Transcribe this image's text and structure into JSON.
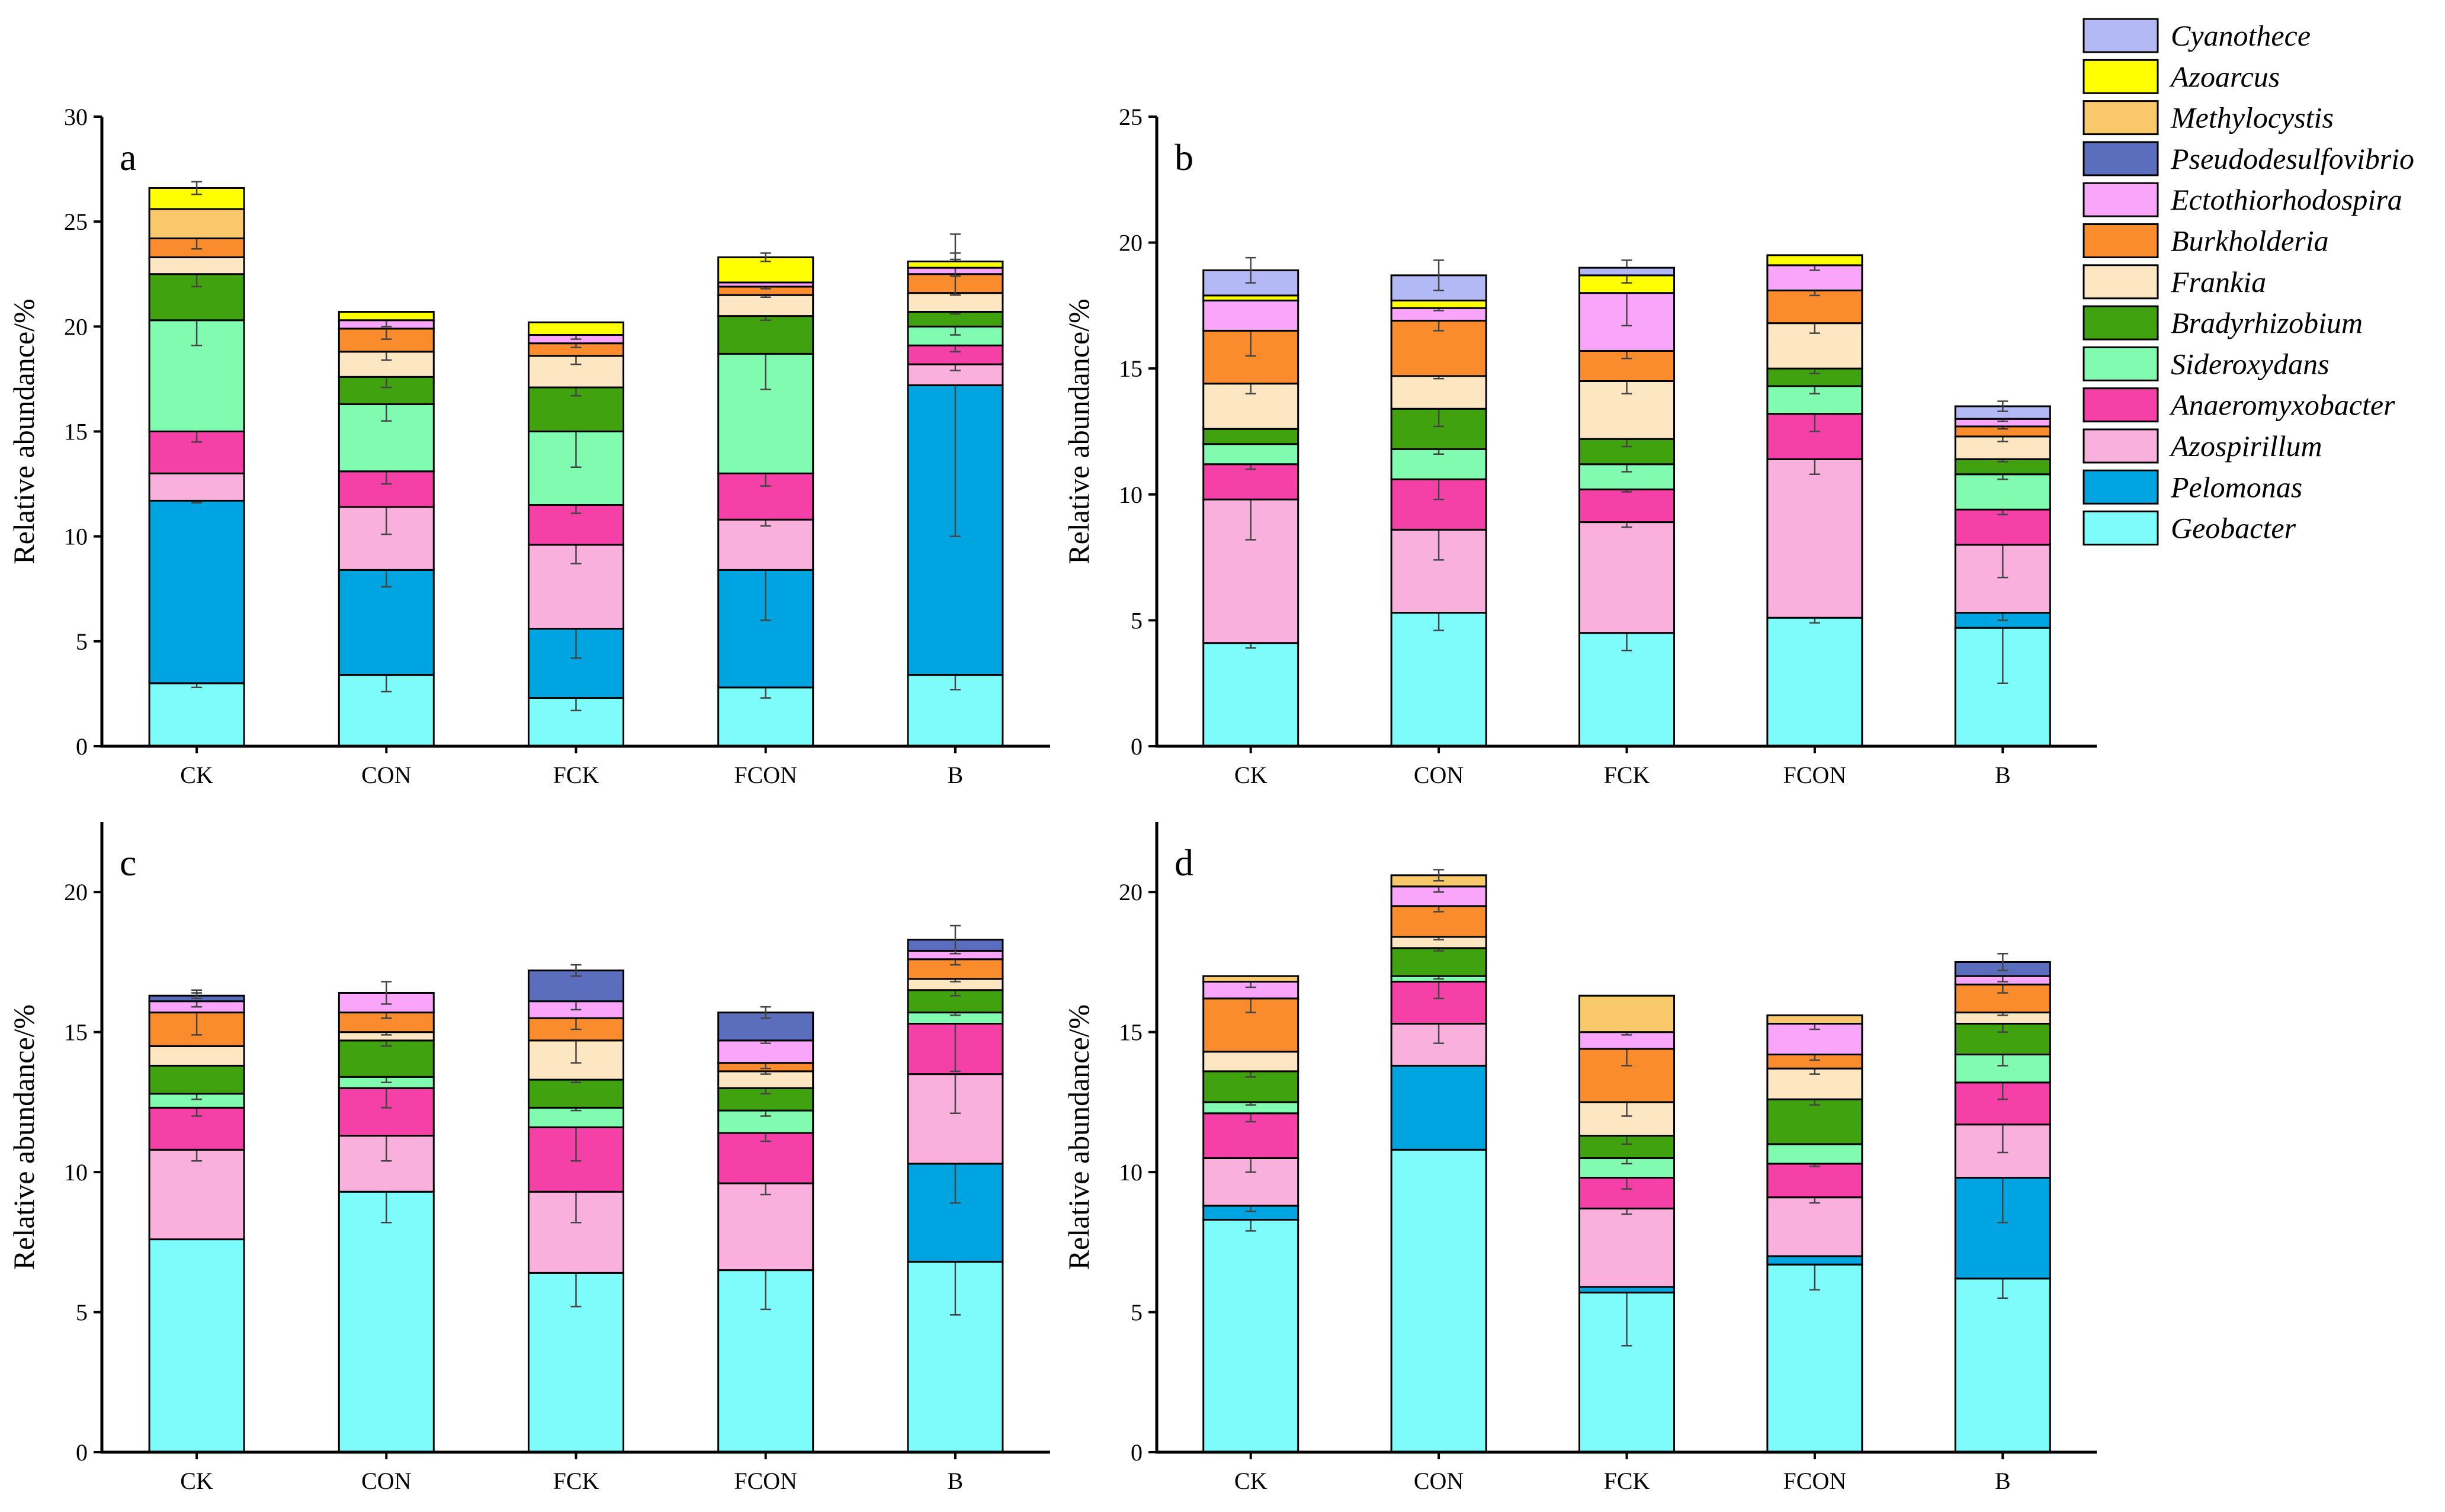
{
  "chart_data": {
    "type": "stacked-bar",
    "ylabel": "Relative abundance/%",
    "categories": [
      "CK",
      "CON",
      "FCK",
      "FCON",
      "B"
    ],
    "series_order": [
      "Geobacter",
      "Pelomonas",
      "Azospirillum",
      "Anaeromyxobacter",
      "Sideroxydans",
      "Bradyrhizobium",
      "Frankia",
      "Burkholderia",
      "Ectothiorhodospira",
      "Pseudodesulfovibrio",
      "Methylocystis",
      "Azoarcus",
      "Cyanothece"
    ],
    "legend": [
      {
        "name": "Cyanothece",
        "color": "#b3b9f5"
      },
      {
        "name": "Azoarcus",
        "color": "#ffff00"
      },
      {
        "name": "Methylocystis",
        "color": "#f9c86b"
      },
      {
        "name": "Pseudodesulfovibrio",
        "color": "#5b6ebd"
      },
      {
        "name": "Ectothiorhodospira",
        "color": "#f9a5f9"
      },
      {
        "name": "Burkholderia",
        "color": "#fa8c2e"
      },
      {
        "name": "Frankia",
        "color": "#fde7c2"
      },
      {
        "name": "Bradyrhizobium",
        "color": "#41a20f"
      },
      {
        "name": "Sideroxydans",
        "color": "#80fbb0"
      },
      {
        "name": "Anaeromyxobacter",
        "color": "#f541a7"
      },
      {
        "name": "Azospirillum",
        "color": "#f9b0dc"
      },
      {
        "name": "Pelomonas",
        "color": "#00a4e0"
      },
      {
        "name": "Geobacter",
        "color": "#7efcfc"
      }
    ],
    "panels": [
      {
        "label": "a",
        "ylim": [
          0,
          30
        ],
        "yticks": [
          "0",
          "5",
          "10",
          "15",
          "20",
          "25",
          "30"
        ],
        "stacks": [
          [
            3.0,
            8.7,
            1.3,
            2.0,
            5.3,
            2.2,
            0.8,
            0.9,
            0,
            0,
            1.4,
            1.0,
            0
          ],
          [
            3.4,
            5.0,
            3.0,
            1.7,
            3.2,
            1.3,
            1.2,
            1.1,
            0.4,
            0,
            0,
            0.4,
            0
          ],
          [
            2.3,
            3.3,
            4.0,
            1.9,
            3.5,
            2.1,
            1.5,
            0.6,
            0.4,
            0,
            0,
            0.6,
            0
          ],
          [
            2.8,
            5.6,
            2.4,
            2.2,
            5.7,
            1.8,
            1.0,
            0.4,
            0.2,
            0,
            0,
            1.2,
            0
          ],
          [
            3.4,
            13.8,
            1.0,
            0.9,
            0.9,
            0.7,
            0.9,
            0.9,
            0.3,
            0,
            0,
            0.3,
            0
          ]
        ],
        "errors": [
          [
            0.2,
            0.1,
            0,
            0.5,
            1.2,
            0.6,
            0,
            0.5,
            0,
            0,
            0,
            0.3,
            0
          ],
          [
            0.8,
            0.8,
            1.3,
            0.6,
            0.8,
            0.5,
            0.4,
            0.5,
            0.3,
            0,
            0,
            0,
            0
          ],
          [
            0.6,
            1.4,
            0.9,
            0.4,
            1.7,
            0.4,
            0.4,
            0.2,
            0.2,
            0,
            0,
            0,
            0
          ],
          [
            0.5,
            2.4,
            0.3,
            0.6,
            1.7,
            0.2,
            0.1,
            0.1,
            0,
            0,
            0,
            0.2,
            0
          ],
          [
            0.7,
            7.2,
            0.3,
            0.3,
            0.4,
            0.1,
            0.1,
            1.0,
            0.4,
            0,
            0,
            0,
            0
          ]
        ]
      },
      {
        "label": "b",
        "ylim": [
          0,
          25
        ],
        "yticks": [
          "0",
          "5",
          "10",
          "15",
          "20",
          "25"
        ],
        "stacks": [
          [
            4.1,
            0,
            5.7,
            1.4,
            0.8,
            0.6,
            1.8,
            2.1,
            1.2,
            0,
            0,
            0.2,
            1.0
          ],
          [
            5.3,
            0,
            3.3,
            2.0,
            1.2,
            1.6,
            1.3,
            2.2,
            0.5,
            0,
            0,
            0.3,
            1.0
          ],
          [
            4.5,
            0,
            4.4,
            1.3,
            1.0,
            1.0,
            2.3,
            1.2,
            2.3,
            0,
            0,
            0.7,
            0.3
          ],
          [
            5.1,
            0,
            6.3,
            1.8,
            1.1,
            0.7,
            1.8,
            1.3,
            1.0,
            0,
            0,
            0.4,
            0
          ],
          [
            4.7,
            0.6,
            2.7,
            1.4,
            1.4,
            0.6,
            0.9,
            0.4,
            0.3,
            0,
            0,
            0,
            0.5
          ]
        ],
        "errors": [
          [
            0.2,
            0,
            1.6,
            0.2,
            0,
            0,
            0.4,
            1.0,
            0,
            0,
            0,
            0,
            0.5
          ],
          [
            0.7,
            0,
            1.2,
            0.8,
            0.2,
            0.7,
            0.1,
            0.4,
            0.1,
            0,
            0,
            0,
            0.6
          ],
          [
            0.7,
            0,
            0.2,
            0.1,
            0.3,
            0.3,
            0.5,
            0.3,
            1.3,
            0,
            0,
            0.3,
            0
          ],
          [
            0.2,
            0,
            0.6,
            0.7,
            0.3,
            0.2,
            0.4,
            0.2,
            0.2,
            0,
            0,
            0,
            0
          ],
          [
            2.2,
            0.3,
            1.3,
            0.2,
            0.2,
            0.1,
            0.2,
            0.1,
            0.1,
            0,
            0,
            0,
            0.2
          ]
        ]
      },
      {
        "label": "c",
        "ylim": [
          0,
          22.5
        ],
        "yticks": [
          "0",
          "5",
          "10",
          "15",
          "20"
        ],
        "stacks": [
          [
            7.6,
            0,
            3.2,
            1.5,
            0.5,
            1.0,
            0.7,
            1.2,
            0.4,
            0.2,
            0,
            0,
            0
          ],
          [
            9.3,
            0,
            2.0,
            1.7,
            0.4,
            1.3,
            0.3,
            0.7,
            0.7,
            0,
            0,
            0,
            0
          ],
          [
            6.4,
            0,
            2.9,
            2.3,
            0.7,
            1.0,
            1.4,
            0.8,
            0.6,
            1.1,
            0,
            0,
            0
          ],
          [
            6.5,
            0,
            3.1,
            1.8,
            0.8,
            0.8,
            0.6,
            0.3,
            0.8,
            1.0,
            0,
            0,
            0
          ],
          [
            6.8,
            3.5,
            3.2,
            1.8,
            0.4,
            0.8,
            0.4,
            0.7,
            0.3,
            0.4,
            0,
            0,
            0
          ]
        ],
        "errors": [
          [
            0,
            0,
            0.4,
            0.3,
            0.2,
            0,
            0,
            0.8,
            0.2,
            0.1,
            0,
            0,
            0
          ],
          [
            1.1,
            0,
            0.9,
            0.7,
            0.2,
            0.2,
            0.1,
            0.2,
            0.4,
            0,
            0,
            0,
            0
          ],
          [
            1.2,
            0,
            1.1,
            1.2,
            0.1,
            0.1,
            0.8,
            0.4,
            0.3,
            0.2,
            0,
            0,
            0
          ],
          [
            1.4,
            0,
            0.4,
            0.3,
            0.2,
            0.2,
            0.1,
            0.2,
            0.1,
            0.2,
            0,
            0,
            0
          ],
          [
            1.9,
            1.4,
            1.4,
            1.7,
            0.1,
            0.2,
            0.1,
            0.2,
            0.1,
            0.5,
            0,
            0,
            0
          ]
        ]
      },
      {
        "label": "d",
        "ylim": [
          0,
          22.5
        ],
        "yticks": [
          "0",
          "5",
          "10",
          "15",
          "20"
        ],
        "stacks": [
          [
            8.3,
            0.5,
            1.7,
            1.6,
            0.4,
            1.1,
            0.7,
            1.9,
            0.6,
            0,
            0.2,
            0,
            0
          ],
          [
            10.8,
            3.0,
            1.5,
            1.5,
            0.2,
            1.0,
            0.4,
            1.1,
            0.7,
            0,
            0.4,
            0,
            0
          ],
          [
            5.7,
            0.2,
            2.8,
            1.1,
            0.7,
            0.8,
            1.2,
            1.9,
            0.6,
            0,
            1.3,
            0,
            0
          ],
          [
            6.7,
            0.3,
            2.1,
            1.2,
            0.7,
            1.6,
            1.1,
            0.5,
            1.1,
            0,
            0.3,
            0,
            0
          ],
          [
            6.2,
            3.6,
            1.9,
            1.5,
            1.0,
            1.1,
            0.4,
            1.0,
            0.3,
            0.5,
            0,
            0,
            0
          ]
        ],
        "errors": [
          [
            0.4,
            0.2,
            0.5,
            0.3,
            0.1,
            0.2,
            0,
            0.5,
            0.2,
            0,
            0,
            0,
            0
          ],
          [
            0,
            0,
            0.7,
            0.6,
            0.1,
            0.1,
            0.1,
            0.2,
            0.2,
            0,
            0.2,
            0,
            0
          ],
          [
            1.9,
            0,
            0.2,
            0.4,
            0.2,
            0.3,
            0.5,
            0.6,
            0.1,
            0,
            0,
            0,
            0
          ],
          [
            0.9,
            0,
            0.2,
            0.1,
            0,
            0.2,
            0.2,
            0.2,
            0.2,
            0,
            0,
            0,
            0
          ],
          [
            0.7,
            1.6,
            1.0,
            0.6,
            0.4,
            0.3,
            0.1,
            0.3,
            0.2,
            0.3,
            0,
            0,
            0
          ]
        ]
      }
    ]
  }
}
